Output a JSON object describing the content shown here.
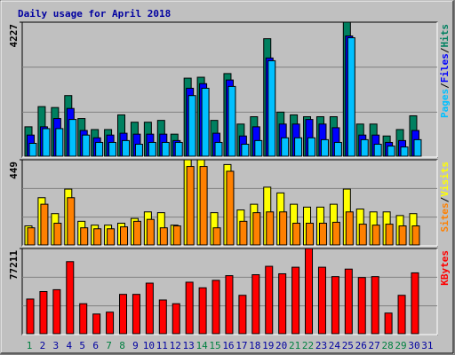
{
  "chart_data": [
    {
      "type": "bar",
      "title": "Daily usage for April 2018",
      "separator": "/",
      "ylim": [
        0,
        4227
      ],
      "yticks": [
        4227
      ],
      "series": [
        {
          "name": "Hits",
          "color": "#008060",
          "values": [
            949,
            1582,
            1553,
            1927,
            1208,
            863,
            863,
            1323,
            1093,
            1093,
            1150,
            719,
            2473,
            2502,
            1150,
            2617,
            1035,
            1265,
            3709,
            1409,
            1323,
            1265,
            1265,
            1265,
            4227,
            1035,
            1035,
            661,
            863,
            1294,
            null
          ]
        },
        {
          "name": "Files",
          "color": "#0000ff",
          "values": [
            690,
            949,
            1208,
            1524,
            834,
            604,
            690,
            748,
            719,
            719,
            719,
            518,
            2157,
            2301,
            748,
            2416,
            661,
            949,
            3106,
            1035,
            1035,
            1179,
            1035,
            920,
            3796,
            690,
            690,
            460,
            518,
            834,
            null
          ]
        },
        {
          "name": "Pages",
          "color": "#00c0ff",
          "values": [
            431,
            892,
            892,
            1179,
            690,
            460,
            460,
            518,
            403,
            460,
            460,
            460,
            1927,
            2157,
            460,
            2214,
            403,
            518,
            3020,
            604,
            604,
            604,
            546,
            460,
            3739,
            546,
            403,
            345,
            316,
            546,
            null
          ]
        }
      ]
    },
    {
      "type": "bar",
      "separator": "/",
      "ylim": [
        0,
        449
      ],
      "yticks": [
        449
      ],
      "series": [
        {
          "name": "Visits",
          "color": "#ffff00",
          "values": [
            104,
            251,
            168,
            296,
            128,
            108,
            108,
            118,
            143,
            177,
            173,
            108,
            449,
            449,
            173,
            424,
            187,
            217,
            306,
            276,
            217,
            202,
            202,
            217,
            296,
            192,
            177,
            177,
            158,
            168,
            null
          ]
        },
        {
          "name": "Sites",
          "color": "#ff8000",
          "values": [
            94,
            217,
            118,
            251,
            94,
            89,
            89,
            99,
            128,
            138,
            94,
            104,
            414,
            414,
            94,
            389,
            128,
            173,
            177,
            177,
            118,
            118,
            118,
            123,
            177,
            113,
            108,
            113,
            104,
            104,
            null
          ]
        }
      ]
    },
    {
      "type": "bar",
      "ylim": [
        0,
        77211
      ],
      "yticks": [
        77211
      ],
      "categories": [
        "1",
        "2",
        "3",
        "4",
        "5",
        "6",
        "7",
        "8",
        "9",
        "10",
        "11",
        "12",
        "13",
        "14",
        "15",
        "16",
        "17",
        "18",
        "19",
        "20",
        "21",
        "22",
        "23",
        "24",
        "25",
        "26",
        "27",
        "28",
        "29",
        "30",
        "31"
      ],
      "category_colors": [
        "#008040",
        "#0000a0",
        "#0000a0",
        "#0000a0",
        "#0000a0",
        "#0000a0",
        "#008040",
        "#008040",
        "#0000a0",
        "#0000a0",
        "#0000a0",
        "#0000a0",
        "#0000a0",
        "#008040",
        "#008040",
        "#0000a0",
        "#0000a0",
        "#0000a0",
        "#0000a0",
        "#0000a0",
        "#008040",
        "#008040",
        "#0000a0",
        "#0000a0",
        "#0000a0",
        "#0000a0",
        "#0000a0",
        "#008040",
        "#008040",
        "#0000a0",
        "#0000a0"
      ],
      "series": [
        {
          "name": "KBytes",
          "color": "#ff0000",
          "values": [
            31888,
            38600,
            40280,
            65450,
            27700,
            18460,
            20140,
            36080,
            36080,
            46150,
            31050,
            27700,
            46990,
            41960,
            48670,
            52860,
            35240,
            53700,
            61250,
            54540,
            60420,
            77211,
            60420,
            52020,
            58740,
            51180,
            52020,
            19300,
            35240,
            55380,
            null
          ]
        }
      ]
    }
  ]
}
